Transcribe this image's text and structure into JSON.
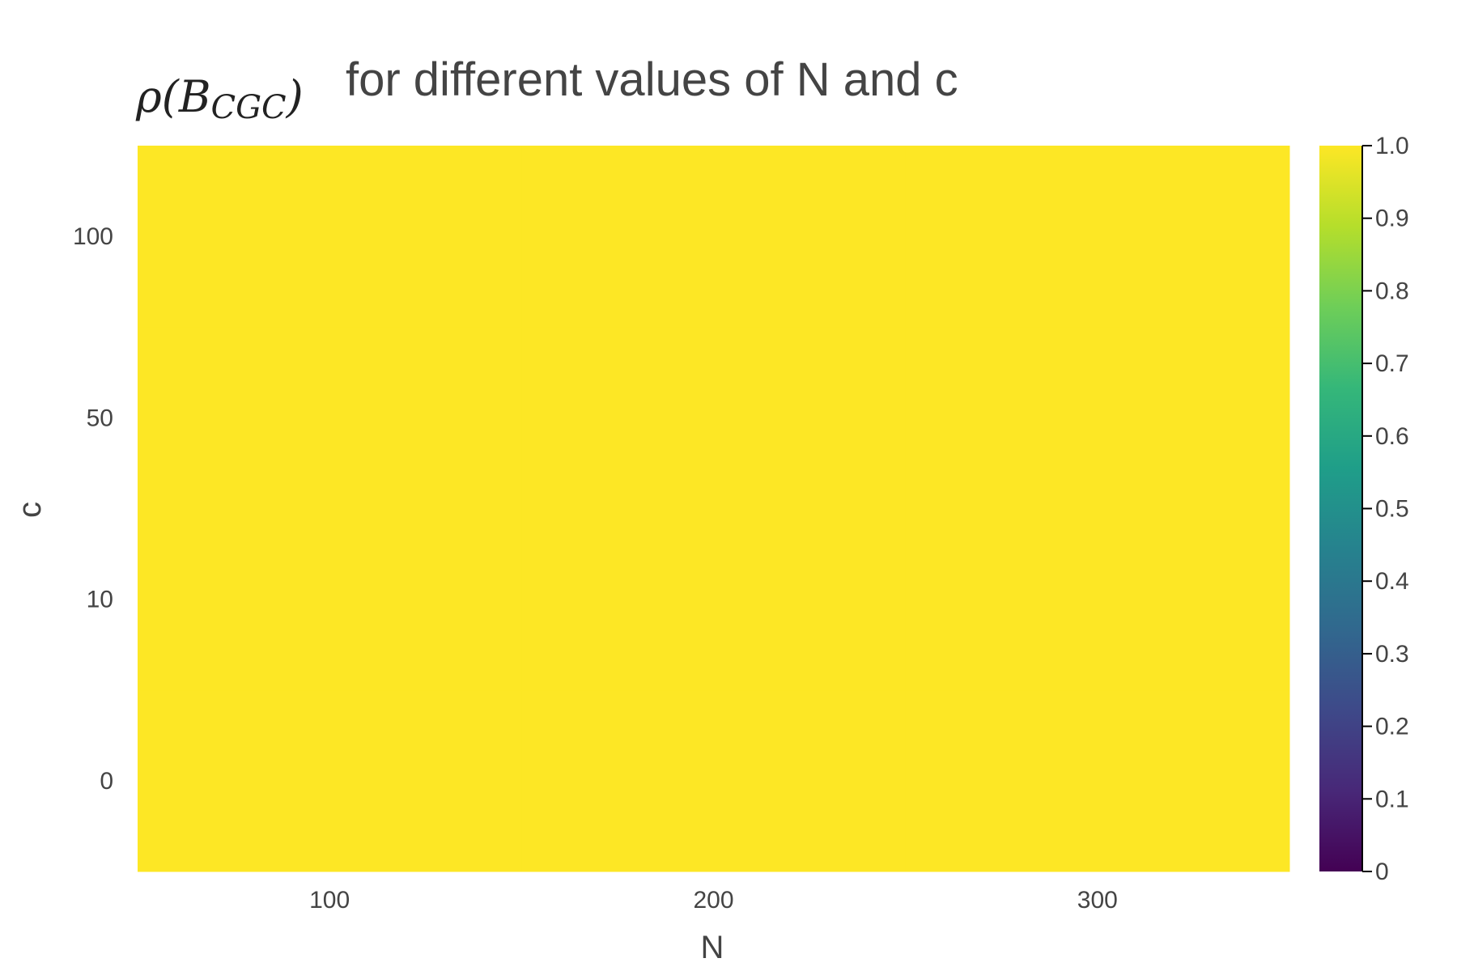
{
  "chart_data": {
    "type": "heatmap",
    "title_math_main": "ρ(B",
    "title_math_sub": "CGC",
    "title_math_close": ")",
    "title_text": "for different values of N and c",
    "xlabel": "N",
    "ylabel": "c",
    "x_ticks": [
      "100",
      "200",
      "300"
    ],
    "y_ticks": [
      "100",
      "50",
      "10",
      "0"
    ],
    "x": [
      100,
      200,
      300
    ],
    "y": [
      0,
      10,
      50,
      100
    ],
    "z": [
      [
        1.0,
        1.0,
        1.0
      ],
      [
        1.0,
        1.0,
        1.0
      ],
      [
        1.0,
        1.0,
        1.0
      ],
      [
        1.0,
        1.0,
        1.0
      ]
    ],
    "color_scale": "viridis",
    "zlim": [
      0,
      1
    ],
    "colorbar_ticks": [
      "1.0",
      "0.9",
      "0.8",
      "0.7",
      "0.6",
      "0.5",
      "0.4",
      "0.3",
      "0.2",
      "0.1",
      "0"
    ],
    "colors": {
      "viridis_stops": [
        "#440154",
        "#482878",
        "#3e4989",
        "#31688e",
        "#26828e",
        "#1f9e89",
        "#35b779",
        "#6ece58",
        "#b5de2b",
        "#fde725"
      ],
      "text": "#444444",
      "axis": "#000000"
    }
  }
}
